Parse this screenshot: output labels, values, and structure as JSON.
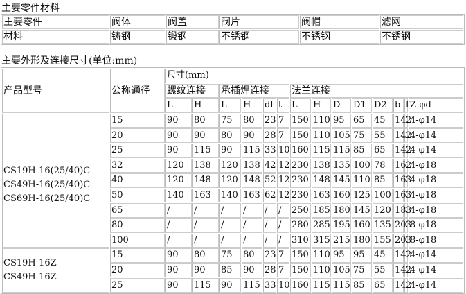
{
  "materials": {
    "title": "主要零件材料",
    "header": [
      "主要零件",
      "阀体",
      "阀盖",
      "阀片",
      "阀帽",
      "滤网"
    ],
    "row": [
      "材料",
      "铸钢",
      "锻钢",
      "不锈钢",
      "不锈钢",
      "不锈钢"
    ]
  },
  "dimensions": {
    "title": "主要外形及连接尺寸(单位:mm)",
    "col_model": "产品型号",
    "col_dn": "公称通径",
    "col_size": "尺寸(mm)",
    "groups": [
      "螺纹连接",
      "承插焊连接",
      "法兰连接"
    ],
    "subcols": [
      "L",
      "H",
      "L",
      "H",
      "dl",
      "t",
      "L",
      "H",
      "D",
      "D1",
      "D2",
      "b",
      "f",
      "Z-φd"
    ],
    "group1": {
      "models": [
        "CS19H-16(25/40)C",
        "CS49H-16(25/40)C",
        "CS69H-16(25/40)C"
      ],
      "rows": [
        [
          "15",
          "90",
          "80",
          "75",
          "80",
          "23",
          "7",
          "150",
          "110",
          "95",
          "65",
          "45",
          "14",
          "2",
          "4-φ14"
        ],
        [
          "20",
          "90",
          "90",
          "80",
          "90",
          "28",
          "7",
          "150",
          "110",
          "105",
          "75",
          "55",
          "14",
          "2",
          "4-φ14"
        ],
        [
          "25",
          "90",
          "115",
          "90",
          "115",
          "33",
          "10",
          "160",
          "115",
          "115",
          "85",
          "65",
          "14",
          "2",
          "4-φ14"
        ],
        [
          "32",
          "120",
          "138",
          "120",
          "138",
          "42",
          "12",
          "230",
          "138",
          "135",
          "100",
          "78",
          "16",
          "2",
          "4-φ18"
        ],
        [
          "40",
          "120",
          "148",
          "120",
          "148",
          "52",
          "12",
          "230",
          "148",
          "145",
          "110",
          "85",
          "16",
          "3",
          "4-φ18"
        ],
        [
          "50",
          "140",
          "163",
          "140",
          "163",
          "62",
          "12",
          "230",
          "163",
          "160",
          "125",
          "100",
          "16",
          "3",
          "4-φ18"
        ],
        [
          "65",
          "/",
          "/",
          "/",
          "/",
          "/",
          "/",
          "250",
          "185",
          "180",
          "145",
          "120",
          "18",
          "3",
          "4-φ18"
        ],
        [
          "80",
          "/",
          "/",
          "/",
          "/",
          "/",
          "/",
          "280",
          "285",
          "195",
          "160",
          "135",
          "20",
          "3",
          "8-φ18"
        ],
        [
          "100",
          "/",
          "/",
          "/",
          "/",
          "/",
          "/",
          "310",
          "315",
          "215",
          "180",
          "155",
          "20",
          "3",
          "8-φ18"
        ]
      ]
    },
    "group2": {
      "models": [
        "CS19H-16Z",
        "CS49H-16Z"
      ],
      "rows": [
        [
          "15",
          "90",
          "80",
          "75",
          "80",
          "23",
          "7",
          "150",
          "110",
          "95",
          "95",
          "45",
          "14",
          "2",
          "4-φ14"
        ],
        [
          "20",
          "90",
          "90",
          "85",
          "90",
          "28",
          "7",
          "150",
          "110",
          "105",
          "75",
          "55",
          "14",
          "2",
          "4-φ14"
        ],
        [
          "25",
          "90",
          "115",
          "90",
          "115",
          "33",
          "10",
          "160",
          "115",
          "115",
          "85",
          "65",
          "14",
          "2",
          "4-φ14"
        ]
      ]
    }
  }
}
